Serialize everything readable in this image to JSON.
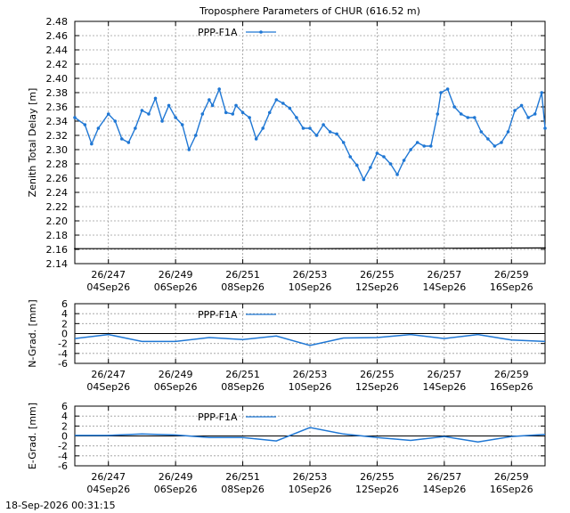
{
  "chart_data": [
    {
      "type": "line",
      "title": "Troposphere Parameters of CHUR (616.52 m)",
      "ylabel": "Zenith Total Delay [m]",
      "xlabel": "",
      "ylim": [
        2.14,
        2.48
      ],
      "yticks": [
        2.14,
        2.16,
        2.18,
        2.2,
        2.22,
        2.24,
        2.26,
        2.28,
        2.3,
        2.32,
        2.34,
        2.36,
        2.38,
        2.4,
        2.42,
        2.44,
        2.46,
        2.48
      ],
      "ytick_labels": [
        "2.14",
        "2.16",
        "2.18",
        "2.20",
        "2.22",
        "2.24",
        "2.26",
        "2.28",
        "2.30",
        "2.32",
        "2.34",
        "2.36",
        "2.38",
        "2.40",
        "2.42",
        "2.44",
        "2.46",
        "2.48"
      ],
      "xlim": [
        246.0,
        260.0
      ],
      "xticks": [
        247,
        249,
        251,
        253,
        255,
        257,
        259
      ],
      "xtick_labels": [
        [
          "26/247",
          "04Sep26"
        ],
        [
          "26/249",
          "06Sep26"
        ],
        [
          "26/251",
          "08Sep26"
        ],
        [
          "26/253",
          "10Sep26"
        ],
        [
          "26/255",
          "12Sep26"
        ],
        [
          "26/257",
          "14Sep26"
        ],
        [
          "26/259",
          "16Sep26"
        ]
      ],
      "grid": true,
      "legend_position": "top-left",
      "series": [
        {
          "name": "PPP-F1A",
          "color": "#1f77d4",
          "marker": "dot",
          "x": [
            246.0,
            246.3,
            246.5,
            246.7,
            247.0,
            247.2,
            247.4,
            247.6,
            247.8,
            248.0,
            248.2,
            248.4,
            248.6,
            248.8,
            249.0,
            249.2,
            249.4,
            249.6,
            249.8,
            250.0,
            250.1,
            250.3,
            250.5,
            250.7,
            250.8,
            251.0,
            251.2,
            251.4,
            251.6,
            251.8,
            252.0,
            252.2,
            252.4,
            252.6,
            252.8,
            253.0,
            253.2,
            253.4,
            253.6,
            253.8,
            254.0,
            254.2,
            254.4,
            254.6,
            254.8,
            255.0,
            255.2,
            255.4,
            255.6,
            255.8,
            256.0,
            256.2,
            256.4,
            256.6,
            256.8,
            256.9,
            257.1,
            257.3,
            257.5,
            257.7,
            257.9,
            258.1,
            258.3,
            258.5,
            258.7,
            258.9,
            259.1,
            259.3,
            259.5,
            259.7,
            259.9,
            260.0
          ],
          "y": [
            2.345,
            2.335,
            2.308,
            2.33,
            2.35,
            2.34,
            2.315,
            2.31,
            2.33,
            2.355,
            2.35,
            2.372,
            2.34,
            2.362,
            2.345,
            2.335,
            2.3,
            2.32,
            2.35,
            2.37,
            2.362,
            2.385,
            2.352,
            2.35,
            2.362,
            2.352,
            2.345,
            2.315,
            2.33,
            2.352,
            2.37,
            2.365,
            2.358,
            2.345,
            2.33,
            2.33,
            2.32,
            2.335,
            2.325,
            2.322,
            2.31,
            2.29,
            2.278,
            2.258,
            2.275,
            2.295,
            2.29,
            2.28,
            2.265,
            2.285,
            2.3,
            2.31,
            2.305,
            2.305,
            2.35,
            2.38,
            2.385,
            2.36,
            2.35,
            2.345,
            2.345,
            2.325,
            2.315,
            2.305,
            2.31,
            2.325,
            2.355,
            2.362,
            2.345,
            2.35,
            2.38,
            2.33
          ]
        },
        {
          "name": "",
          "color": "#000000",
          "x": [
            246.0,
            253.0,
            260.0
          ],
          "y": [
            2.161,
            2.161,
            2.162
          ]
        }
      ]
    },
    {
      "type": "line",
      "title": "",
      "ylabel": "N-Grad. [mm]",
      "xlabel": "",
      "ylim": [
        -6,
        6
      ],
      "yticks": [
        -6,
        -4,
        -2,
        0,
        2,
        4,
        6
      ],
      "ytick_labels": [
        "-6",
        "-4",
        "-2",
        "0",
        "2",
        "4",
        "6"
      ],
      "xlim": [
        246.0,
        260.0
      ],
      "xticks": [
        247,
        249,
        251,
        253,
        255,
        257,
        259
      ],
      "xtick_labels": [
        [
          "26/247",
          "04Sep26"
        ],
        [
          "26/249",
          "06Sep26"
        ],
        [
          "26/251",
          "08Sep26"
        ],
        [
          "26/253",
          "10Sep26"
        ],
        [
          "26/255",
          "12Sep26"
        ],
        [
          "26/257",
          "14Sep26"
        ],
        [
          "26/259",
          "16Sep26"
        ]
      ],
      "grid": true,
      "zero_line": true,
      "legend_position": "top-left",
      "series": [
        {
          "name": "PPP-F1A",
          "color": "#1f77d4",
          "x": [
            246.0,
            247.0,
            248.0,
            249.0,
            250.0,
            251.0,
            252.0,
            253.0,
            254.0,
            255.0,
            256.0,
            257.0,
            258.0,
            259.0,
            260.0
          ],
          "y": [
            -1.0,
            -0.2,
            -1.6,
            -1.6,
            -0.8,
            -1.2,
            -0.5,
            -2.4,
            -0.9,
            -0.8,
            -0.2,
            -1.0,
            -0.2,
            -1.3,
            -1.6
          ]
        }
      ]
    },
    {
      "type": "line",
      "title": "",
      "ylabel": "E-Grad. [mm]",
      "xlabel": "",
      "ylim": [
        -6,
        6
      ],
      "yticks": [
        -6,
        -4,
        -2,
        0,
        2,
        4,
        6
      ],
      "ytick_labels": [
        "-6",
        "-4",
        "-2",
        "0",
        "2",
        "4",
        "6"
      ],
      "xlim": [
        246.0,
        260.0
      ],
      "xticks": [
        247,
        249,
        251,
        253,
        255,
        257,
        259
      ],
      "xtick_labels": [
        [
          "26/247",
          "04Sep26"
        ],
        [
          "26/249",
          "06Sep26"
        ],
        [
          "26/251",
          "08Sep26"
        ],
        [
          "26/253",
          "10Sep26"
        ],
        [
          "26/255",
          "12Sep26"
        ],
        [
          "26/257",
          "14Sep26"
        ],
        [
          "26/259",
          "16Sep26"
        ]
      ],
      "grid": true,
      "zero_line": true,
      "legend_position": "top-left",
      "series": [
        {
          "name": "PPP-F1A",
          "color": "#1f77d4",
          "x": [
            246.0,
            247.0,
            248.0,
            249.0,
            250.0,
            251.0,
            252.0,
            253.0,
            254.0,
            255.0,
            256.0,
            257.0,
            258.0,
            259.0,
            260.0
          ],
          "y": [
            0.1,
            0.1,
            0.4,
            0.2,
            -0.3,
            -0.3,
            -1.0,
            1.7,
            0.4,
            -0.3,
            -0.9,
            -0.1,
            -1.2,
            -0.1,
            0.3
          ]
        }
      ]
    }
  ],
  "footer_timestamp": "18-Sep-2026 00:31:15"
}
